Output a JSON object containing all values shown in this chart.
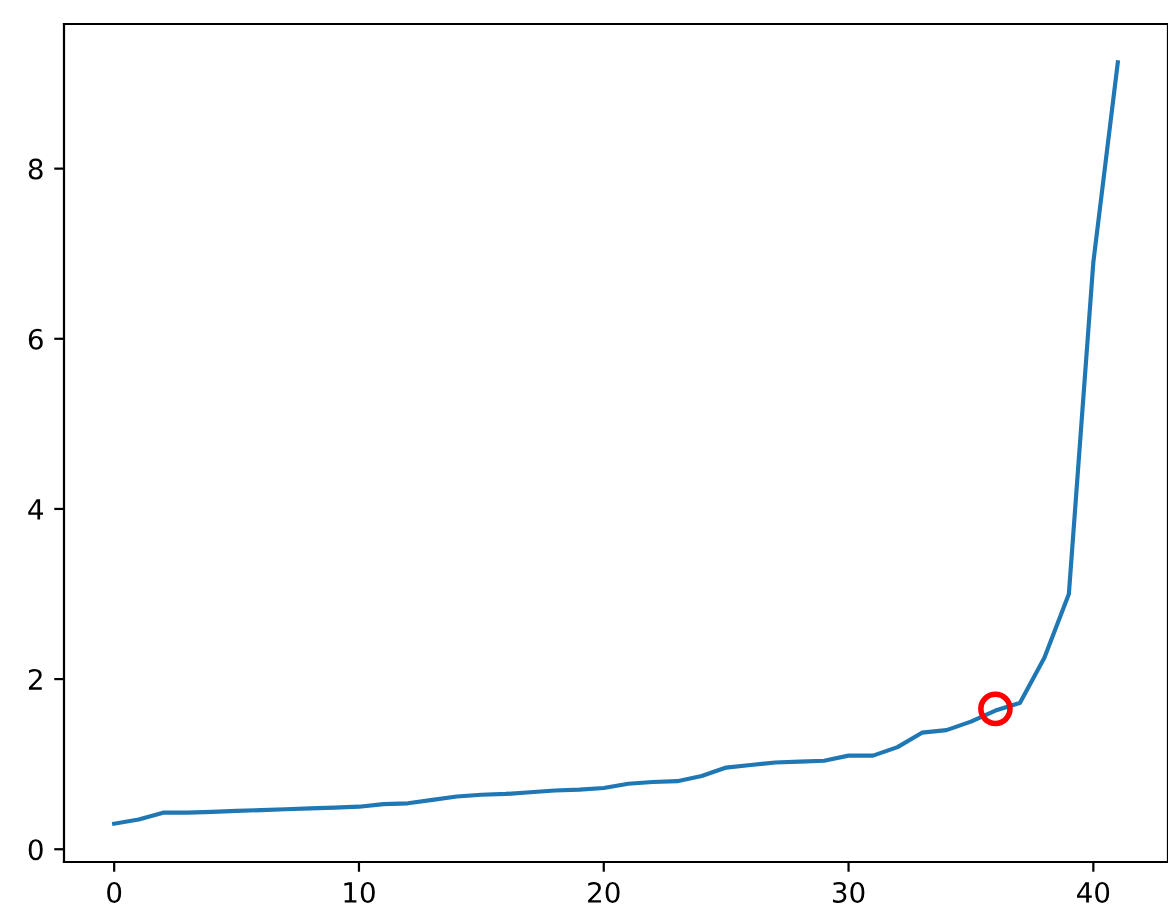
{
  "chart_data": {
    "type": "line",
    "x": [
      0,
      1,
      2,
      3,
      4,
      5,
      6,
      7,
      8,
      9,
      10,
      11,
      12,
      13,
      14,
      15,
      16,
      17,
      18,
      19,
      20,
      21,
      22,
      23,
      24,
      25,
      26,
      27,
      28,
      29,
      30,
      31,
      32,
      33,
      34,
      35,
      36,
      37,
      38,
      39,
      40,
      41
    ],
    "series": [
      {
        "color": "#1f77b4",
        "values": [
          0.3,
          0.35,
          0.43,
          0.43,
          0.44,
          0.45,
          0.46,
          0.47,
          0.48,
          0.49,
          0.5,
          0.53,
          0.54,
          0.58,
          0.62,
          0.64,
          0.65,
          0.67,
          0.69,
          0.7,
          0.72,
          0.77,
          0.79,
          0.8,
          0.86,
          0.96,
          0.99,
          1.02,
          1.03,
          1.04,
          1.1,
          1.1,
          1.2,
          1.37,
          1.4,
          1.5,
          1.63,
          1.72,
          2.25,
          3.0,
          6.9,
          9.25
        ]
      },
      {
        "type": "scatter",
        "x": [
          36
        ],
        "color": "#ff0000",
        "marker": "circle",
        "values": [
          1.65
        ]
      }
    ],
    "xlim": [
      -2.05,
      43.05
    ],
    "ylim": [
      -0.15,
      9.7
    ],
    "xticks": [
      0,
      10,
      20,
      30,
      40
    ],
    "yticks": [
      0,
      2,
      4,
      6,
      8
    ],
    "grid": false,
    "legend": false
  }
}
